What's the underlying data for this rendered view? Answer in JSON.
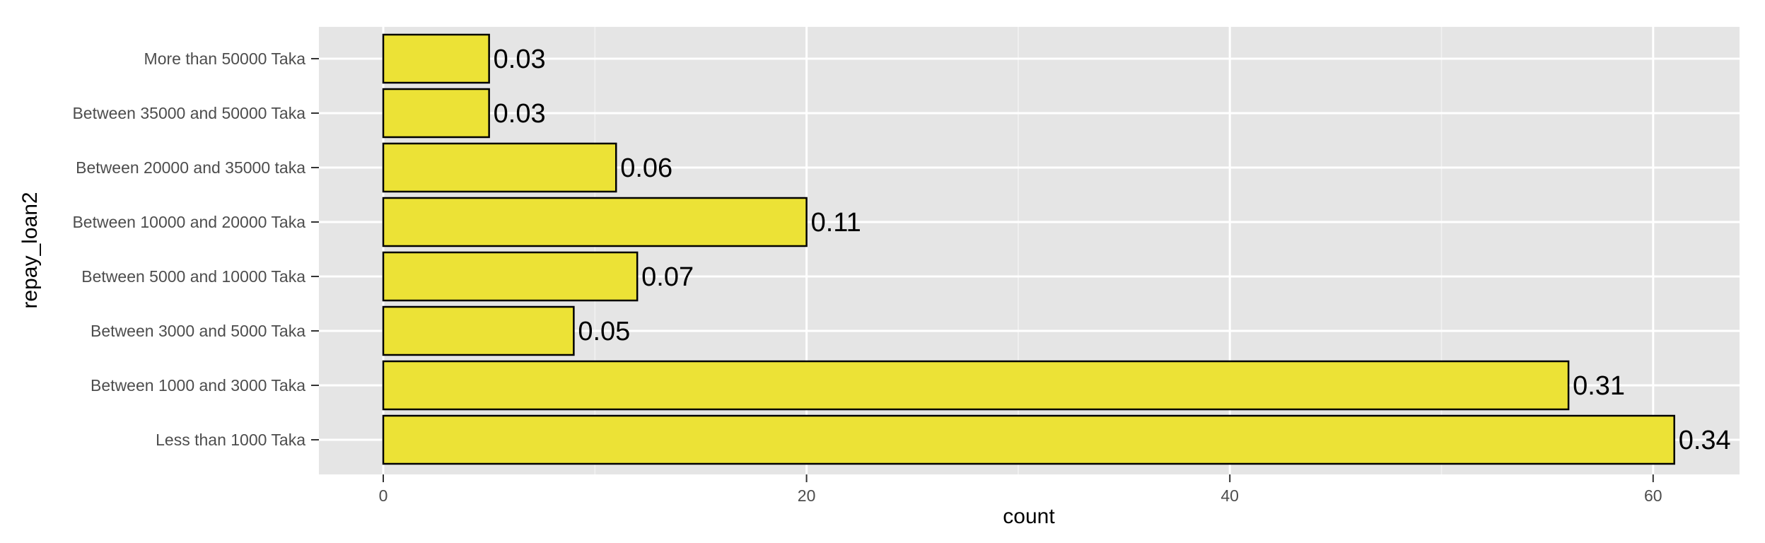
{
  "chart_data": {
    "type": "bar",
    "orientation": "horizontal",
    "categories": [
      "Less than 1000 Taka",
      "Between 1000 and 3000 Taka",
      "Between 3000 and 5000 Taka",
      "Between 5000 and 10000 Taka",
      "Between 10000 and 20000 Taka",
      "Between 20000 and 35000 taka",
      "Between 35000 and 50000 Taka",
      "More than 50000 Taka"
    ],
    "values": [
      61,
      56,
      9,
      12,
      20,
      11,
      5,
      5
    ],
    "labels": [
      "0.34",
      "0.31",
      "0.05",
      "0.07",
      "0.11",
      "0.06",
      "0.03",
      "0.03"
    ],
    "xlabel": "count",
    "ylabel": "repay_loan2",
    "xlim": [
      -3,
      64
    ],
    "x_ticks": [
      0,
      20,
      40,
      60
    ],
    "x_tick_labels": [
      "0",
      "20",
      "40",
      "60"
    ],
    "grid": true,
    "colors": {
      "panel": "#e5e5e5",
      "grid_major": "#ffffff",
      "grid_minor": "#f2f2f2",
      "bar_fill": "#ece236",
      "bar_stroke": "#000000",
      "tick_mark": "#333333"
    }
  }
}
